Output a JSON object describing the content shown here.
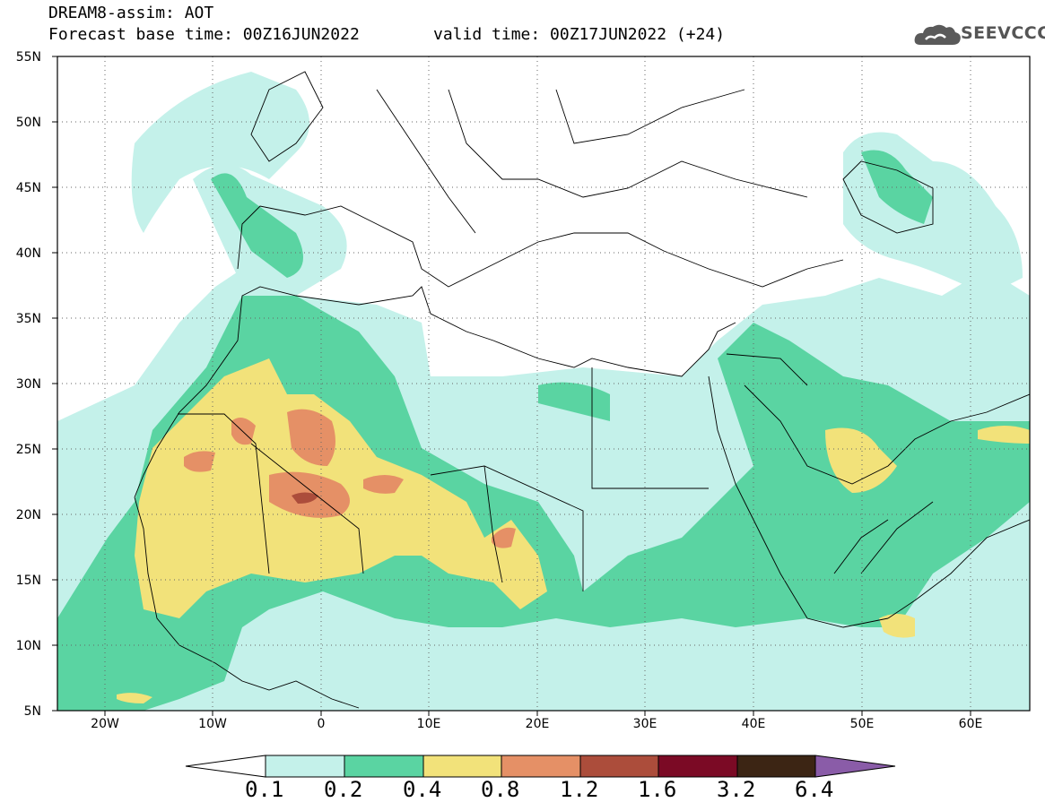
{
  "header": {
    "title_line1": "DREAM8-assim: AOT",
    "title_line2": "Forecast base time: 00Z16JUN2022",
    "valid_time": "valid time: 00Z17JUN2022 (+24)",
    "logo_text": "SEEVCCC",
    "logo_icon": "cloud-icon"
  },
  "map": {
    "lat_labels": [
      "55N",
      "50N",
      "45N",
      "40N",
      "35N",
      "30N",
      "25N",
      "20N",
      "15N",
      "10N",
      "5N"
    ],
    "lon_labels": [
      "20W",
      "10W",
      "0",
      "10E",
      "20E",
      "30E",
      "40E",
      "50E",
      "60E"
    ],
    "lon_range": [
      -25,
      65
    ],
    "lat_range": [
      5,
      55
    ],
    "grid_lines": "dotted"
  },
  "colorbar": {
    "thresholds": [
      "0.1",
      "0.2",
      "0.4",
      "0.8",
      "1.2",
      "1.6",
      "3.2",
      "6.4"
    ],
    "colors": {
      "below": "#ffffff",
      "c1": "#c4f1ea",
      "c2": "#5ad4a2",
      "c3": "#f2e27a",
      "c4": "#e59066",
      "c5": "#ac4d3b",
      "c6": "#7b0a25",
      "c7": "#3c2514",
      "above": "#8a5ca8"
    }
  }
}
